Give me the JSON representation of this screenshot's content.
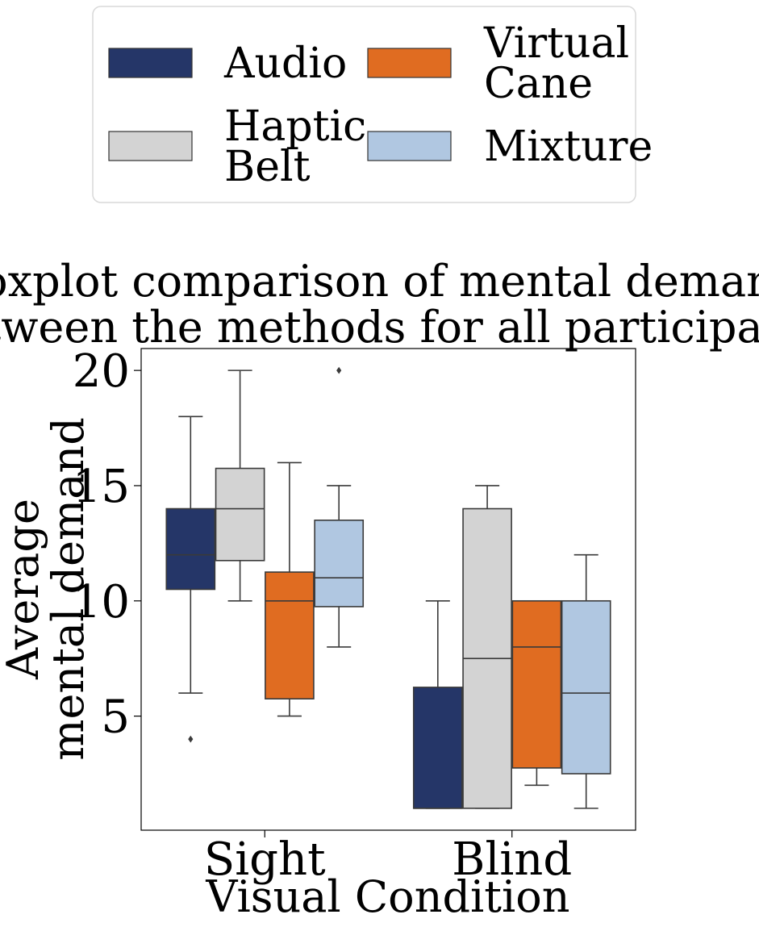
{
  "chart_data": {
    "type": "boxplot",
    "title_lines": [
      "Boxplot comparison of mental demand",
      "between the methods for all participants."
    ],
    "xlabel": "Visual Condition",
    "ylabel_lines": [
      "Average",
      "mental demand"
    ],
    "categories": [
      "Sight",
      "Blind"
    ],
    "yticks": [
      5,
      10,
      15,
      20
    ],
    "ylim": [
      0.05,
      20.95
    ],
    "grid": false,
    "legend_placement": "top (outside, above title), 2 columns",
    "series": [
      {
        "name": "Audio",
        "legend_lines": [
          "Audio"
        ],
        "color": "#253668",
        "boxes": [
          {
            "category": "Sight",
            "whisker_low": 6,
            "q1": 10.5,
            "median": 12,
            "q3": 14,
            "whisker_high": 18,
            "outliers": [
              4
            ]
          },
          {
            "category": "Blind",
            "whisker_low": 1,
            "q1": 1,
            "median": 1,
            "q3": 6.25,
            "whisker_high": 10,
            "outliers": []
          }
        ]
      },
      {
        "name": "Haptic Belt",
        "legend_lines": [
          "Haptic",
          "Belt"
        ],
        "color": "#d3d3d3",
        "boxes": [
          {
            "category": "Sight",
            "whisker_low": 10,
            "q1": 11.75,
            "median": 14,
            "q3": 15.75,
            "whisker_high": 20,
            "outliers": []
          },
          {
            "category": "Blind",
            "whisker_low": 1,
            "q1": 1,
            "median": 7.5,
            "q3": 14,
            "whisker_high": 15,
            "outliers": []
          }
        ]
      },
      {
        "name": "Virtual Cane",
        "legend_lines": [
          "Virtual",
          "Cane"
        ],
        "color": "#e06c21",
        "boxes": [
          {
            "category": "Sight",
            "whisker_low": 5,
            "q1": 5.75,
            "median": 10,
            "q3": 11.25,
            "whisker_high": 16,
            "outliers": []
          },
          {
            "category": "Blind",
            "whisker_low": 2,
            "q1": 2.75,
            "median": 8,
            "q3": 10,
            "whisker_high": 10,
            "outliers": []
          }
        ]
      },
      {
        "name": "Mixture",
        "legend_lines": [
          "Mixture"
        ],
        "color": "#b0c7e1",
        "boxes": [
          {
            "category": "Sight",
            "whisker_low": 8,
            "q1": 9.75,
            "median": 11,
            "q3": 13.5,
            "whisker_high": 15,
            "outliers": [
              20
            ]
          },
          {
            "category": "Blind",
            "whisker_low": 1,
            "q1": 2.5,
            "median": 6,
            "q3": 10,
            "whisker_high": 12,
            "outliers": []
          }
        ]
      }
    ]
  }
}
